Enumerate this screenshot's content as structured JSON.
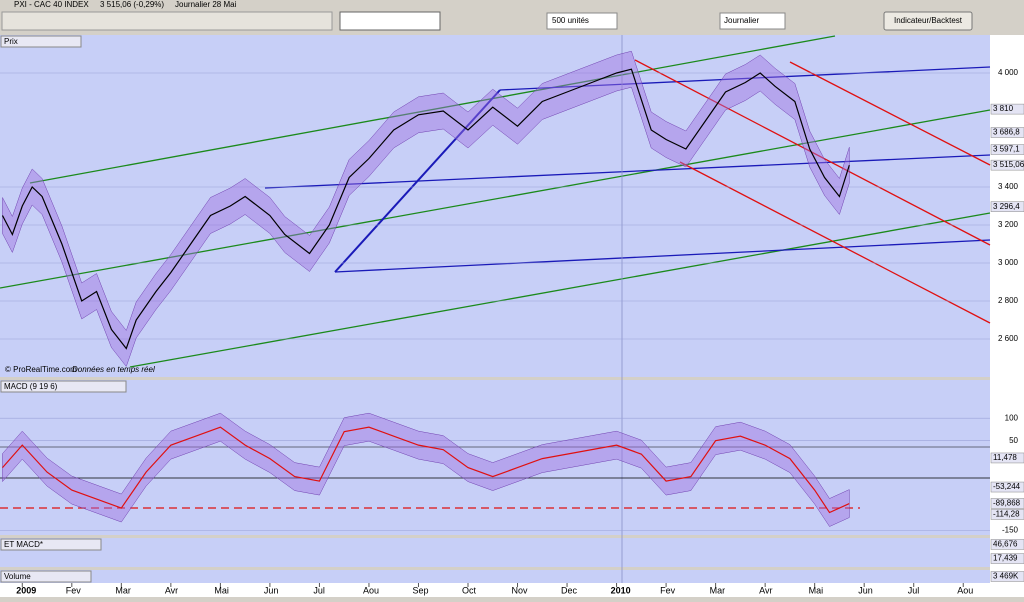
{
  "title_bar": {
    "symbol": "PXI - CAC 40 INDEX",
    "quote": "3 515,06 (-0,29%)",
    "period": "Journalier 28 Mai"
  },
  "toolbar": {
    "units": "500 unités",
    "interval": "Journalier",
    "button": "Indicateur/Backtest"
  },
  "price_panel": {
    "label": "Prix",
    "footnote": "© ProRealTime.com",
    "footnote_status": "Données en temps réel",
    "ylim": [
      2400,
      4200
    ],
    "yticks": [
      {
        "value": 2600,
        "label": "2 600"
      },
      {
        "value": 2800,
        "label": "2 800"
      },
      {
        "value": 3000,
        "label": "3 000"
      },
      {
        "value": 3200,
        "label": "3 200"
      },
      {
        "value": 3400,
        "label": "3 400"
      },
      {
        "value": 4000,
        "label": "4 000"
      }
    ],
    "value_labels": [
      {
        "value": 3810,
        "label": "3 810"
      },
      {
        "value": 3686.8,
        "label": "3 686,8"
      },
      {
        "value": 3597.1,
        "label": "3 597,1"
      },
      {
        "value": 3515.06,
        "label": "3 515,06"
      },
      {
        "value": 3296.4,
        "label": "3 296,4"
      }
    ],
    "x": [
      -0.4,
      -0.2,
      0,
      0.2,
      0.4,
      0.8,
      1.0,
      1.2,
      1.5,
      1.8,
      2.1,
      2.3,
      2.7,
      3.0,
      3.4,
      3.8,
      4.2,
      4.5,
      5.0,
      5.3,
      5.8,
      6.2,
      6.6,
      7.0,
      7.5,
      8.0,
      8.5,
      9.0,
      9.5,
      10.0,
      10.5,
      11.0,
      11.5,
      12.0,
      12.3,
      12.7,
      13.0,
      13.4,
      13.8,
      14.2,
      14.6,
      14.9,
      15.2,
      15.6,
      15.9,
      16.2,
      16.5,
      16.7
    ],
    "values": [
      3250,
      3150,
      3300,
      3400,
      3350,
      3100,
      2950,
      2800,
      2850,
      2650,
      2550,
      2700,
      2850,
      2950,
      3100,
      3250,
      3300,
      3350,
      3250,
      3150,
      3050,
      3200,
      3450,
      3550,
      3700,
      3780,
      3800,
      3700,
      3820,
      3720,
      3850,
      3900,
      3950,
      4000,
      4020,
      3700,
      3650,
      3600,
      3750,
      3900,
      3950,
      4000,
      3930,
      3850,
      3600,
      3450,
      3350,
      3515.06
    ]
  },
  "macd_panel": {
    "label": "MACD (9 19 6)",
    "ylim": [
      -160,
      185
    ],
    "yticks": [
      100,
      50,
      -150
    ],
    "value_labels": [
      {
        "value": 11.478,
        "label": "11,478"
      },
      {
        "value": -53.244,
        "label": "-53,244"
      },
      {
        "value": -89.868,
        "label": "-89,868"
      },
      {
        "value": -114.28,
        "label": "-114,28"
      }
    ],
    "x": [
      -0.4,
      0,
      0.5,
      1.0,
      1.5,
      2.0,
      2.5,
      3.0,
      3.5,
      4.0,
      4.5,
      5.0,
      5.5,
      6.0,
      6.5,
      7.0,
      7.5,
      8.0,
      8.5,
      9.0,
      9.5,
      10.0,
      10.5,
      11.0,
      11.5,
      12.0,
      12.5,
      13.0,
      13.5,
      14.0,
      14.5,
      15.0,
      15.5,
      16.0,
      16.3,
      16.7
    ],
    "values": [
      -10,
      40,
      -20,
      -60,
      -80,
      -100,
      -20,
      40,
      60,
      80,
      40,
      10,
      -30,
      -40,
      70,
      80,
      60,
      40,
      30,
      -10,
      -30,
      -10,
      10,
      20,
      30,
      40,
      20,
      -40,
      -30,
      50,
      60,
      40,
      10,
      -60,
      -110,
      -90
    ]
  },
  "et_panel": {
    "label": "ET MACD*",
    "ylim": [
      0,
      60
    ],
    "value_labels": [
      {
        "value": 46.676,
        "label": "46,676"
      },
      {
        "value": 17.439,
        "label": "17,439"
      }
    ]
  },
  "volume_panel": {
    "label": "Volume",
    "value_labels": [
      {
        "value": 3469000,
        "label": "3 469K"
      }
    ]
  },
  "x_axis": {
    "xlim": [
      -0.45,
      19.5
    ],
    "ticks": [
      {
        "value": 0,
        "label": "2009"
      },
      {
        "value": 1,
        "label": "Fev"
      },
      {
        "value": 2,
        "label": "Mar"
      },
      {
        "value": 3,
        "label": "Avr"
      },
      {
        "value": 4,
        "label": "Mai"
      },
      {
        "value": 5,
        "label": "Jun"
      },
      {
        "value": 6,
        "label": "Jul"
      },
      {
        "value": 7,
        "label": "Aou"
      },
      {
        "value": 8,
        "label": "Sep"
      },
      {
        "value": 9,
        "label": "Oct"
      },
      {
        "value": 10,
        "label": "Nov"
      },
      {
        "value": 11,
        "label": "Dec"
      },
      {
        "value": 12,
        "label": "2010"
      },
      {
        "value": 13,
        "label": "Fev"
      },
      {
        "value": 14,
        "label": "Mar"
      },
      {
        "value": 15,
        "label": "Avr"
      },
      {
        "value": 16,
        "label": "Mai"
      },
      {
        "value": 17,
        "label": "Jun"
      },
      {
        "value": 18,
        "label": "Jul"
      },
      {
        "value": 19,
        "label": "Aou"
      }
    ]
  }
}
